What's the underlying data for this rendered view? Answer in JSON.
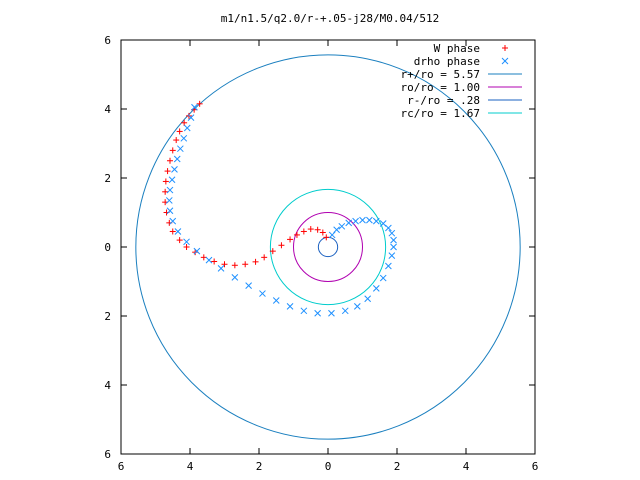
{
  "chart_data": {
    "type": "scatter",
    "title": "m1/n1.5/q2.0/r-+.05-j28/M0.04/512",
    "xlabel": "",
    "ylabel": "",
    "xlim": [
      -6,
      6
    ],
    "ylim": [
      -6,
      6
    ],
    "x_ticks": [
      -6,
      -4,
      -2,
      0,
      2,
      4,
      6
    ],
    "y_ticks": [
      -6,
      -4,
      -2,
      0,
      2,
      4,
      6
    ],
    "x_tick_labels": [
      "6",
      "4",
      "2",
      "0",
      "2",
      "4",
      "6"
    ],
    "y_tick_labels": [
      "6",
      "4",
      "2",
      "0",
      "2",
      "4",
      "6"
    ],
    "grid": false,
    "legend_position": "top-right",
    "legend": [
      {
        "label": "W phase",
        "kind": "marker",
        "marker": "+",
        "color": "#ff0000"
      },
      {
        "label": "drho phase",
        "kind": "marker",
        "marker": "x",
        "color": "#1e90ff"
      },
      {
        "label": "r+/ro = 5.57",
        "kind": "line",
        "color": "#1a7fbf"
      },
      {
        "label": "ro/ro = 1.00",
        "kind": "line",
        "color": "#b000b0"
      },
      {
        "label": "r-/ro = .28",
        "kind": "line",
        "color": "#1a60c0"
      },
      {
        "label": "rc/ro = 1.67",
        "kind": "line",
        "color": "#00cccc"
      }
    ],
    "circles": [
      {
        "name": "r+/ro = 5.57",
        "r": 5.57,
        "color": "#1a7fbf"
      },
      {
        "name": "ro/ro = 1.00",
        "r": 1.0,
        "color": "#b000b0"
      },
      {
        "name": "r-/ro = .28",
        "r": 0.28,
        "color": "#1a60c0"
      },
      {
        "name": "rc/ro = 1.67",
        "r": 1.67,
        "color": "#00cccc"
      }
    ],
    "series": [
      {
        "name": "W phase",
        "marker": "+",
        "color": "#ff0000",
        "points": [
          [
            -0.05,
            0.28
          ],
          [
            -0.15,
            0.42
          ],
          [
            -0.3,
            0.5
          ],
          [
            -0.5,
            0.52
          ],
          [
            -0.7,
            0.45
          ],
          [
            -0.9,
            0.35
          ],
          [
            -1.1,
            0.22
          ],
          [
            -1.35,
            0.05
          ],
          [
            -1.6,
            -0.12
          ],
          [
            -1.85,
            -0.3
          ],
          [
            -2.1,
            -0.43
          ],
          [
            -2.4,
            -0.5
          ],
          [
            -2.7,
            -0.53
          ],
          [
            -3.0,
            -0.5
          ],
          [
            -3.3,
            -0.42
          ],
          [
            -3.6,
            -0.3
          ],
          [
            -3.85,
            -0.15
          ],
          [
            -4.1,
            0.0
          ],
          [
            -4.3,
            0.2
          ],
          [
            -4.5,
            0.45
          ],
          [
            -4.6,
            0.7
          ],
          [
            -4.68,
            1.0
          ],
          [
            -4.72,
            1.3
          ],
          [
            -4.72,
            1.6
          ],
          [
            -4.7,
            1.9
          ],
          [
            -4.65,
            2.2
          ],
          [
            -4.58,
            2.5
          ],
          [
            -4.5,
            2.8
          ],
          [
            -4.4,
            3.1
          ],
          [
            -4.3,
            3.35
          ],
          [
            -4.17,
            3.6
          ],
          [
            -4.03,
            3.8
          ],
          [
            -3.88,
            3.98
          ],
          [
            -3.72,
            4.15
          ]
        ]
      },
      {
        "name": "drho phase",
        "marker": "x",
        "color": "#1e90ff",
        "points": [
          [
            0.12,
            0.35
          ],
          [
            0.25,
            0.5
          ],
          [
            0.4,
            0.6
          ],
          [
            0.6,
            0.7
          ],
          [
            0.8,
            0.75
          ],
          [
            1.0,
            0.78
          ],
          [
            1.2,
            0.78
          ],
          [
            1.4,
            0.75
          ],
          [
            1.6,
            0.68
          ],
          [
            1.75,
            0.55
          ],
          [
            1.85,
            0.4
          ],
          [
            1.9,
            0.2
          ],
          [
            1.9,
            0.0
          ],
          [
            1.85,
            -0.25
          ],
          [
            1.75,
            -0.55
          ],
          [
            1.6,
            -0.9
          ],
          [
            1.4,
            -1.2
          ],
          [
            1.15,
            -1.5
          ],
          [
            0.85,
            -1.72
          ],
          [
            0.5,
            -1.85
          ],
          [
            0.1,
            -1.92
          ],
          [
            -0.3,
            -1.92
          ],
          [
            -0.7,
            -1.85
          ],
          [
            -1.1,
            -1.72
          ],
          [
            -1.5,
            -1.55
          ],
          [
            -1.9,
            -1.35
          ],
          [
            -2.3,
            -1.12
          ],
          [
            -2.7,
            -0.88
          ],
          [
            -3.1,
            -0.62
          ],
          [
            -3.45,
            -0.38
          ],
          [
            -3.8,
            -0.12
          ],
          [
            -4.1,
            0.15
          ],
          [
            -4.35,
            0.45
          ],
          [
            -4.5,
            0.75
          ],
          [
            -4.58,
            1.05
          ],
          [
            -4.6,
            1.35
          ],
          [
            -4.58,
            1.65
          ],
          [
            -4.52,
            1.95
          ],
          [
            -4.45,
            2.25
          ],
          [
            -4.37,
            2.55
          ],
          [
            -4.28,
            2.85
          ],
          [
            -4.18,
            3.15
          ],
          [
            -4.08,
            3.45
          ],
          [
            -3.97,
            3.75
          ],
          [
            -3.87,
            4.05
          ]
        ]
      }
    ]
  }
}
